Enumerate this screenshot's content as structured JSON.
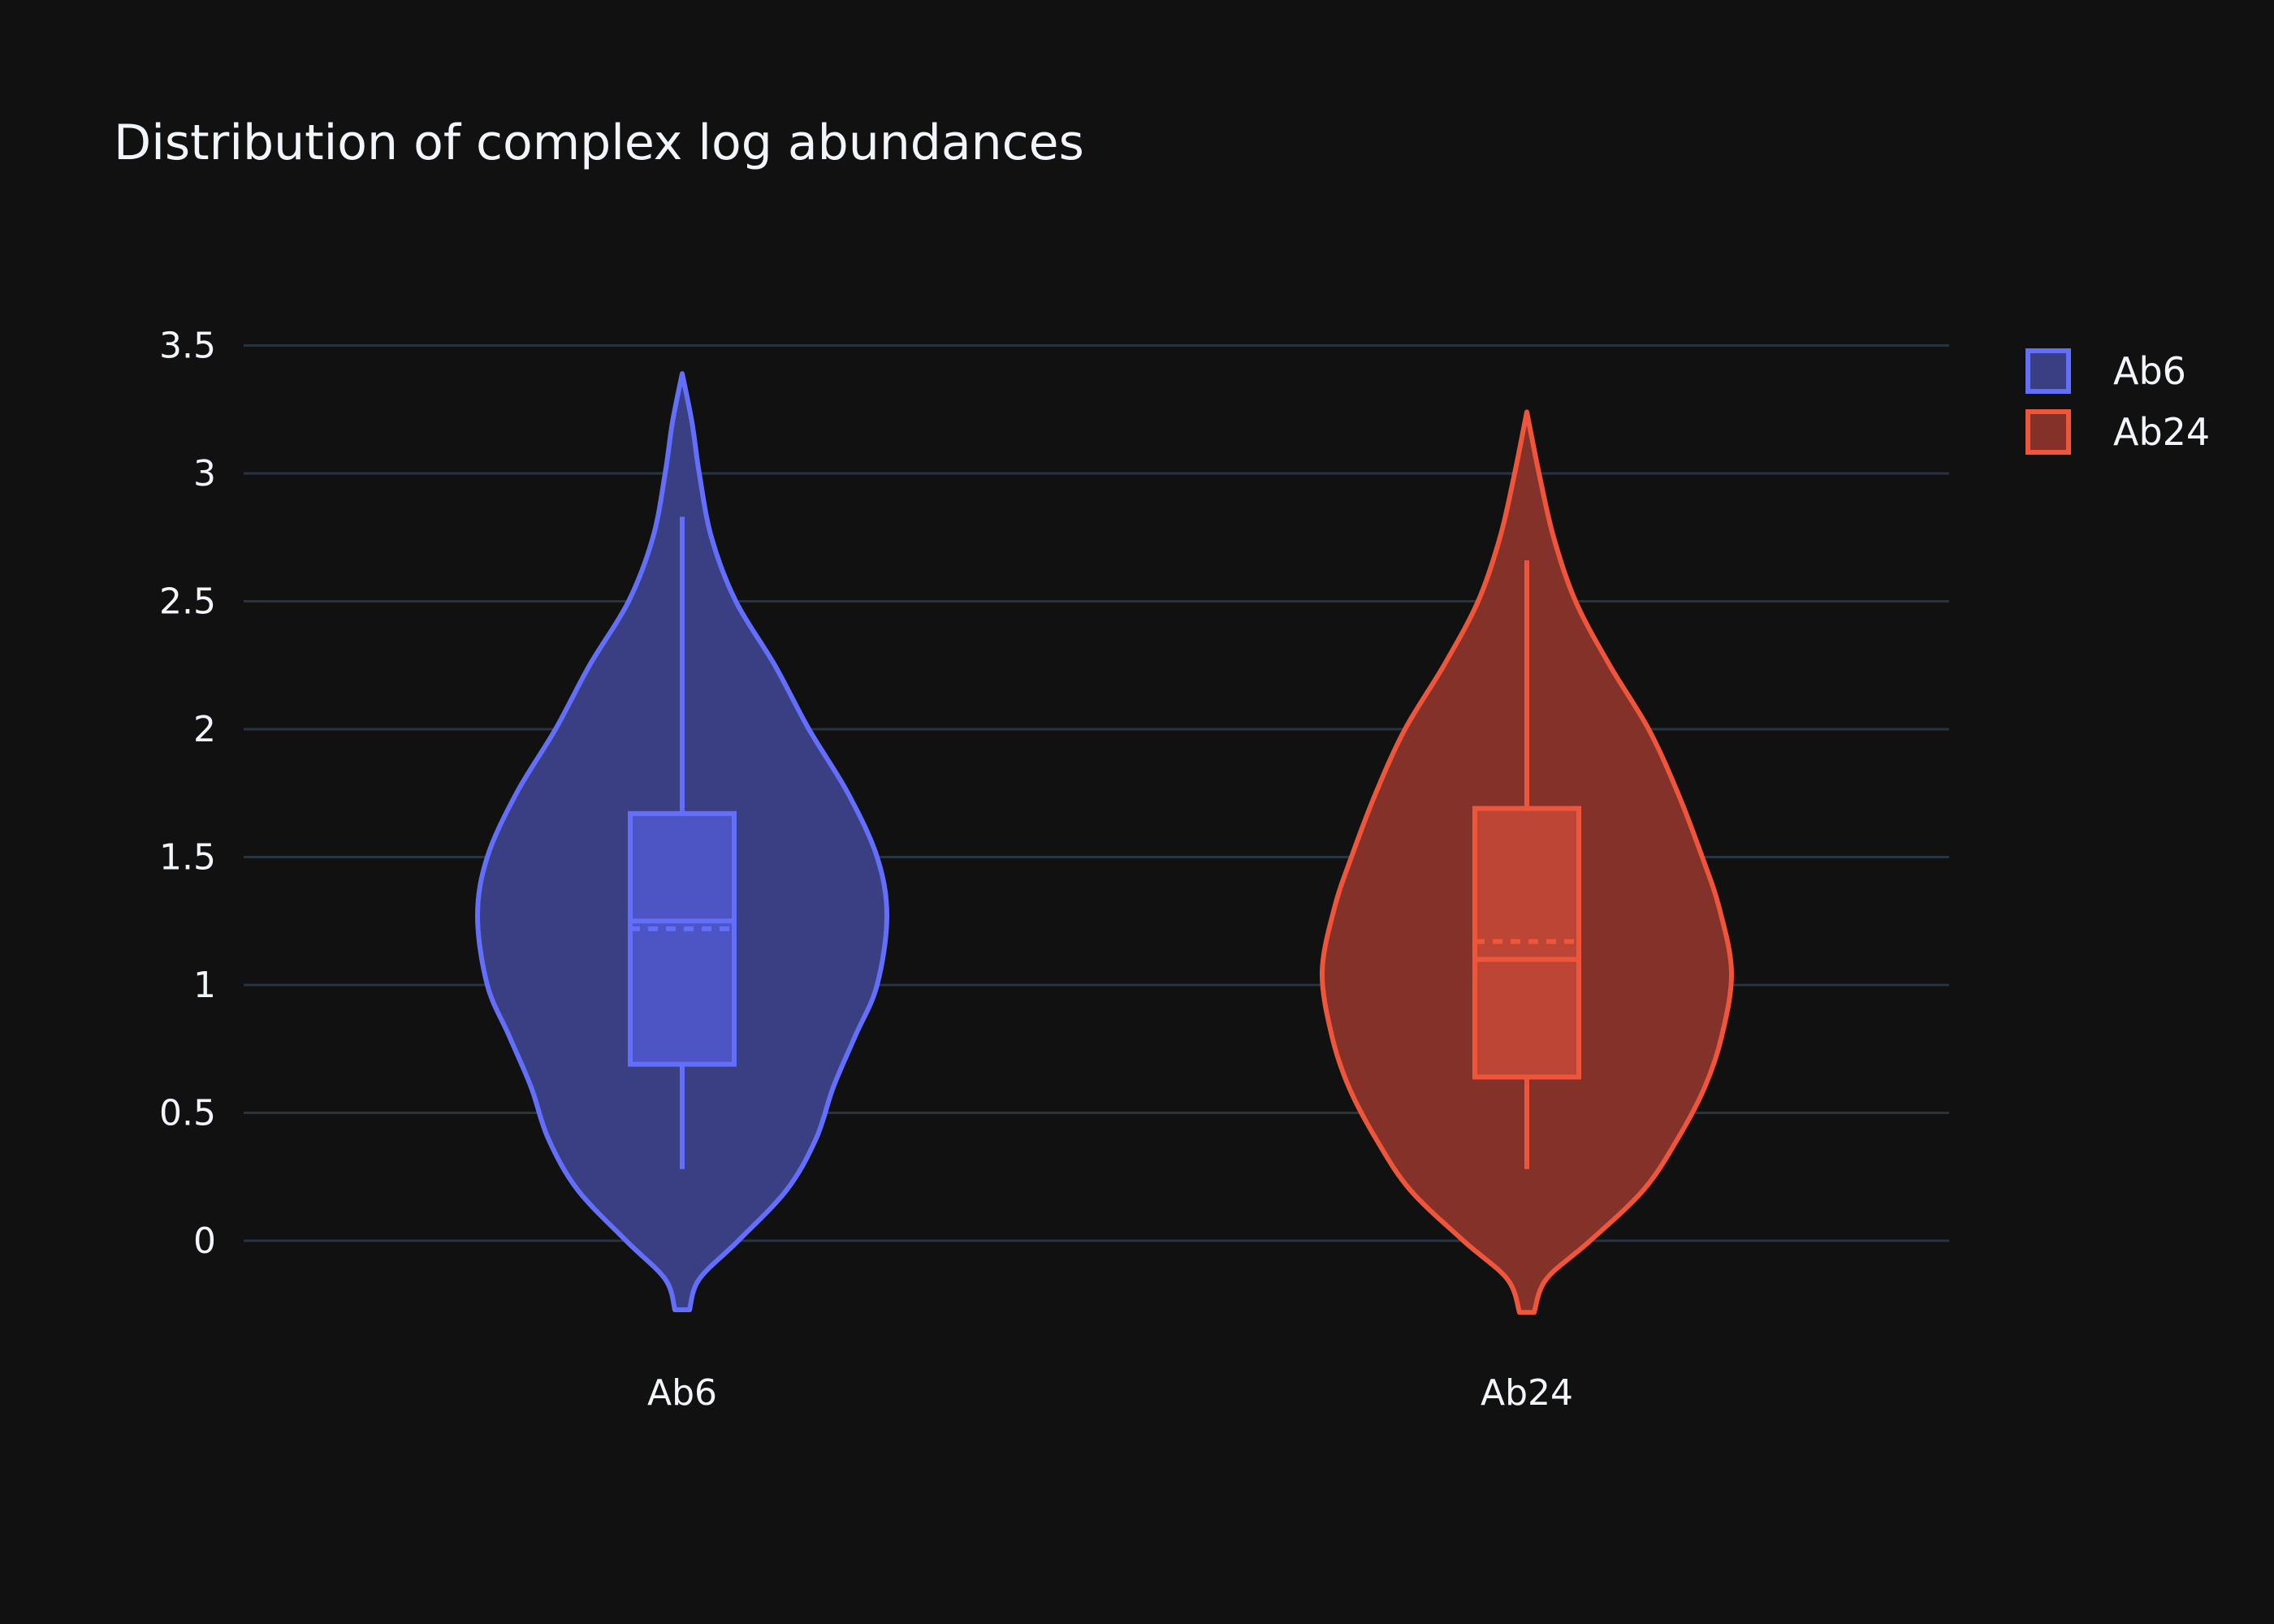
{
  "chart_data": {
    "type": "violin",
    "title": "Distribution of complex log abundances",
    "xlabel": "",
    "ylabel": "",
    "categories": [
      "Ab6",
      "Ab24"
    ],
    "y_ticks": [
      "0",
      "0.5",
      "1",
      "1.5",
      "2",
      "2.5",
      "3",
      "3.5"
    ],
    "y_tick_values": [
      0,
      0.5,
      1,
      1.5,
      2,
      2.5,
      3,
      3.5
    ],
    "ylim": [
      -0.3,
      3.55
    ],
    "grid": true,
    "legend_position": "top-right",
    "series": [
      {
        "name": "Ab6",
        "color": "#636efa",
        "fill": "#3a3f84",
        "box_fill": "#4d55c4",
        "min": 0.28,
        "q1": 0.69,
        "median": 1.25,
        "mean": 1.22,
        "q3": 1.67,
        "max": 2.83,
        "kde_y": [
          -0.27,
          -0.15,
          0.0,
          0.2,
          0.4,
          0.6,
          0.8,
          1.0,
          1.27,
          1.5,
          1.75,
          2.0,
          2.25,
          2.5,
          2.75,
          3.0,
          3.2,
          3.39
        ],
        "kde_w": [
          0.03,
          0.07,
          0.23,
          0.43,
          0.55,
          0.62,
          0.71,
          0.8,
          0.84,
          0.8,
          0.68,
          0.52,
          0.38,
          0.22,
          0.12,
          0.07,
          0.04,
          0.0
        ]
      },
      {
        "name": "Ab24",
        "color": "#ef553b",
        "fill": "#84312a",
        "box_fill": "#bd4535",
        "min": 0.28,
        "q1": 0.64,
        "median": 1.1,
        "mean": 1.17,
        "q3": 1.69,
        "max": 2.66,
        "kde_y": [
          -0.28,
          -0.15,
          0.0,
          0.2,
          0.4,
          0.6,
          0.8,
          1.05,
          1.3,
          1.5,
          1.75,
          2.0,
          2.25,
          2.5,
          2.75,
          3.0,
          3.24
        ],
        "kde_w": [
          0.03,
          0.08,
          0.26,
          0.48,
          0.62,
          0.73,
          0.8,
          0.84,
          0.79,
          0.72,
          0.62,
          0.5,
          0.34,
          0.2,
          0.11,
          0.05,
          0.0
        ]
      }
    ]
  }
}
